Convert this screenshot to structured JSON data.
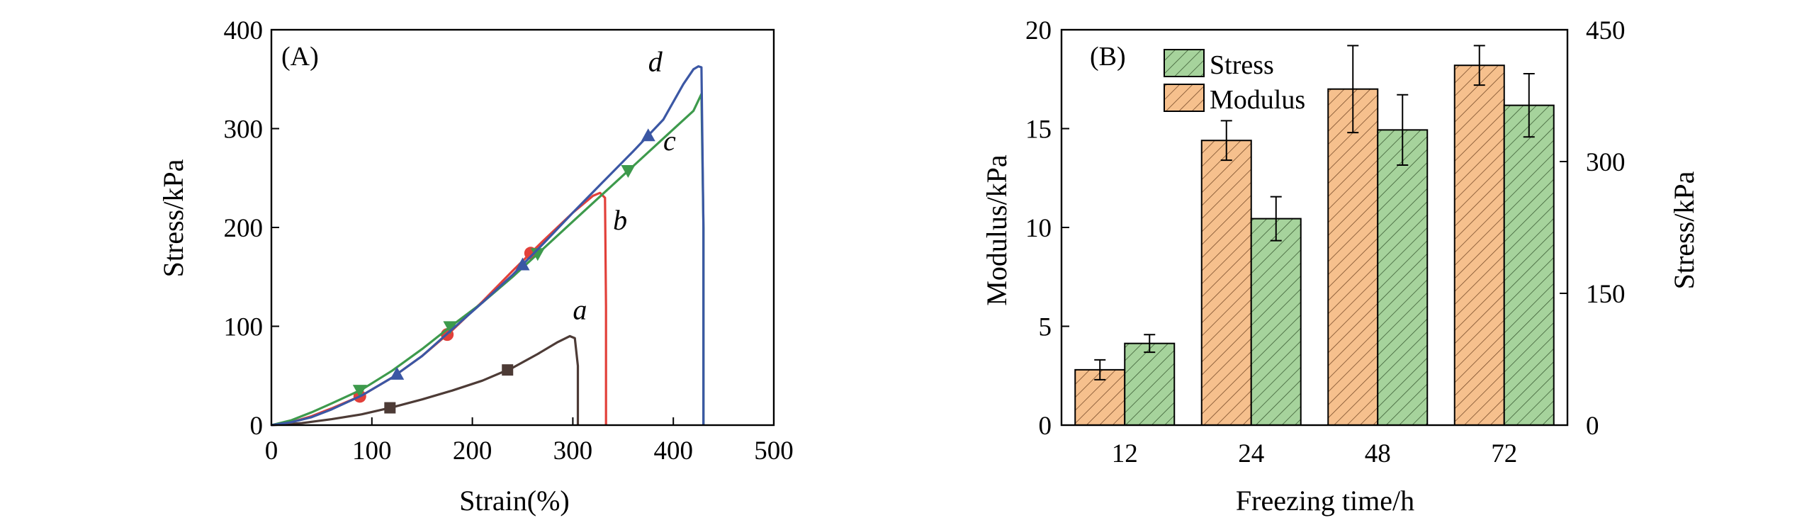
{
  "chart_data": [
    {
      "panel": "(A)",
      "type": "line",
      "xlabel": "Strain(%)",
      "ylabel": "Stress/kPa",
      "xlim": [
        0,
        500
      ],
      "ylim": [
        0,
        400
      ],
      "xticks": [
        0,
        100,
        200,
        300,
        400,
        500
      ],
      "yticks": [
        0,
        100,
        200,
        300,
        400
      ],
      "grid": false,
      "series": [
        {
          "name": "a",
          "color": "#4d3b36",
          "marker": "square",
          "points": [
            [
              0,
              0
            ],
            [
              30,
              2
            ],
            [
              60,
              6
            ],
            [
              90,
              11
            ],
            [
              120,
              18
            ],
            [
              150,
              26
            ],
            [
              180,
              35
            ],
            [
              210,
              45
            ],
            [
              240,
              58
            ],
            [
              265,
              72
            ],
            [
              285,
              84
            ],
            [
              297,
              90
            ],
            [
              302,
              88
            ],
            [
              305,
              60
            ],
            [
              305,
              0
            ]
          ],
          "marker_x": [
            118,
            235
          ],
          "label_at": [
            300,
            107
          ]
        },
        {
          "name": "b",
          "color": "#e2403a",
          "marker": "circle",
          "points": [
            [
              0,
              0
            ],
            [
              20,
              3
            ],
            [
              40,
              9
            ],
            [
              60,
              17
            ],
            [
              90,
              30
            ],
            [
              120,
              48
            ],
            [
              150,
              70
            ],
            [
              180,
              96
            ],
            [
              210,
              125
            ],
            [
              240,
              156
            ],
            [
              270,
              186
            ],
            [
              300,
              215
            ],
            [
              320,
              232
            ],
            [
              327,
              235
            ],
            [
              332,
              230
            ],
            [
              333,
              120
            ],
            [
              333,
              0
            ]
          ],
          "marker_x": [
            88,
            175,
            258
          ],
          "label_at": [
            340,
            198
          ]
        },
        {
          "name": "c",
          "color": "#3d9a4c",
          "marker": "triangle-down",
          "points": [
            [
              0,
              0
            ],
            [
              20,
              5
            ],
            [
              40,
              13
            ],
            [
              60,
              22
            ],
            [
              90,
              36
            ],
            [
              120,
              55
            ],
            [
              150,
              77
            ],
            [
              180,
              101
            ],
            [
              210,
              124
            ],
            [
              240,
              150
            ],
            [
              270,
              178
            ],
            [
              300,
              206
            ],
            [
              330,
              234
            ],
            [
              360,
              262
            ],
            [
              390,
              290
            ],
            [
              420,
              318
            ],
            [
              428,
              335
            ],
            [
              430,
              200
            ],
            [
              430,
              0
            ]
          ],
          "marker_x": [
            88,
            178,
            265,
            355
          ],
          "label_at": [
            390,
            278
          ]
        },
        {
          "name": "d",
          "color": "#3b57a4",
          "marker": "triangle-up",
          "points": [
            [
              0,
              0
            ],
            [
              20,
              3
            ],
            [
              40,
              8
            ],
            [
              60,
              16
            ],
            [
              90,
              30
            ],
            [
              120,
              48
            ],
            [
              150,
              70
            ],
            [
              180,
              97
            ],
            [
              210,
              124
            ],
            [
              240,
              152
            ],
            [
              270,
              183
            ],
            [
              300,
              215
            ],
            [
              330,
              246
            ],
            [
              360,
              277
            ],
            [
              390,
              309
            ],
            [
              410,
              345
            ],
            [
              420,
              360
            ],
            [
              425,
              363
            ],
            [
              428,
              362
            ],
            [
              430,
              200
            ],
            [
              430,
              0
            ]
          ],
          "marker_x": [
            125,
            250,
            375
          ],
          "label_at": [
            375,
            358
          ]
        }
      ]
    },
    {
      "panel": "(B)",
      "type": "bar",
      "xlabel": "Freezing time/h",
      "ylabel_left": "Modulus/kPa",
      "ylabel_right": "Stress/kPa",
      "categories": [
        "12",
        "24",
        "48",
        "72"
      ],
      "ylim_left": [
        0,
        20
      ],
      "yticks_left": [
        0,
        5,
        10,
        15,
        20
      ],
      "ylim_right": [
        0,
        450
      ],
      "yticks_right": [
        0,
        150,
        300,
        450
      ],
      "series": [
        {
          "name": "Stress",
          "axis": "right",
          "color": "#a6d39c",
          "hatch": "#3d5e36",
          "values": [
            93,
            235,
            336,
            364
          ],
          "errors": [
            10,
            25,
            40,
            36
          ]
        },
        {
          "name": "Modulus",
          "axis": "left",
          "color": "#f6c08d",
          "hatch": "#7a4e2b",
          "values": [
            2.8,
            14.4,
            17.0,
            18.2
          ],
          "errors": [
            0.5,
            1.0,
            2.2,
            1.0
          ]
        }
      ],
      "legend_position": "top-left"
    }
  ]
}
